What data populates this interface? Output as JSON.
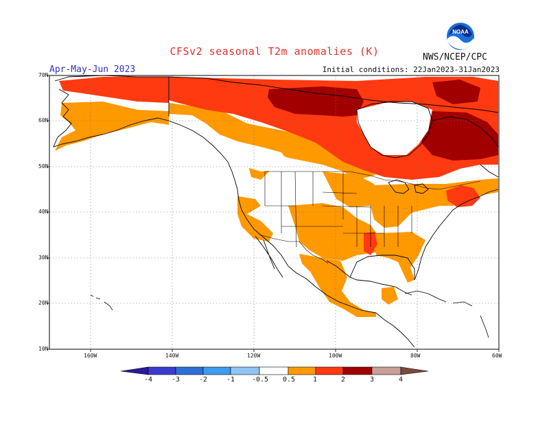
{
  "title": "CFSv2 seasonal T2m anomalies (K)",
  "agency": "NWS/NCEP/CPC",
  "logo_text": "NOAA",
  "season": "Apr-May-Jun 2023",
  "initial_conditions": "Initial conditions: 22Jan2023-31Jan2023",
  "lat_labels": [
    "70N",
    "60N",
    "50N",
    "40N",
    "30N",
    "20N",
    "10N"
  ],
  "lon_labels": [
    "160W",
    "140W",
    "120W",
    "100W",
    "80W",
    "60W"
  ],
  "colorbar": {
    "labels": [
      "-4",
      "-3",
      "-2",
      "-1",
      "-0.5",
      "0.5",
      "1",
      "2",
      "3",
      "4"
    ],
    "colors": [
      "#2a1a9a",
      "#3b3bd0",
      "#2f6fd8",
      "#3d9cf0",
      "#8fc4f4",
      "#ffffff",
      "#ff9900",
      "#ff3a10",
      "#a00000",
      "#c8a098",
      "#7a4a3c"
    ]
  },
  "colors": {
    "anomaly_05_1": "#ff9900",
    "anomaly_1_2": "#ff3a10",
    "anomaly_2_3": "#a00000",
    "title_red": "#e0302a",
    "season_blue": "#3030c0"
  }
}
